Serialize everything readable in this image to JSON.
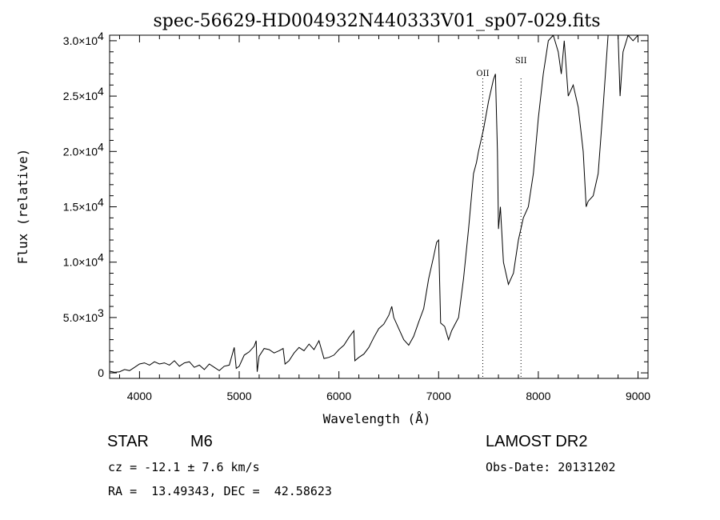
{
  "chart_data": {
    "type": "line",
    "title": "spec-56629-HD004932N440333V01_sp07-029.fits",
    "xlabel": "Wavelength (Å)",
    "ylabel": "Flux (relative)",
    "xlim": [
      3700,
      9100
    ],
    "ylim": [
      -500,
      30500
    ],
    "x_ticks": [
      {
        "value": 4000,
        "label": "4000"
      },
      {
        "value": 5000,
        "label": "5000"
      },
      {
        "value": 6000,
        "label": "6000"
      },
      {
        "value": 7000,
        "label": "7000"
      },
      {
        "value": 8000,
        "label": "8000"
      },
      {
        "value": 9000,
        "label": "9000"
      }
    ],
    "y_ticks": [
      {
        "value": 0,
        "label": "0"
      },
      {
        "value": 5000,
        "label": "5.0×10",
        "exp": "3"
      },
      {
        "value": 10000,
        "label": "1.0×10",
        "exp": "4"
      },
      {
        "value": 15000,
        "label": "1.5×10",
        "exp": "4"
      },
      {
        "value": 20000,
        "label": "2.0×10",
        "exp": "4"
      },
      {
        "value": 25000,
        "label": "2.5×10",
        "exp": "4"
      },
      {
        "value": 30000,
        "label": "3.0×10",
        "exp": "4"
      }
    ],
    "grid": false,
    "annotations": [
      {
        "label": "OII",
        "x": 7443
      },
      {
        "label": "SII",
        "x": 7826
      }
    ],
    "series": [
      {
        "values": [
          [
            3700,
            150
          ],
          [
            3750,
            50
          ],
          [
            3800,
            100
          ],
          [
            3850,
            300
          ],
          [
            3900,
            200
          ],
          [
            3950,
            500
          ],
          [
            4000,
            800
          ],
          [
            4050,
            900
          ],
          [
            4100,
            700
          ],
          [
            4150,
            1000
          ],
          [
            4200,
            800
          ],
          [
            4250,
            900
          ],
          [
            4300,
            700
          ],
          [
            4350,
            1100
          ],
          [
            4400,
            600
          ],
          [
            4450,
            900
          ],
          [
            4500,
            1000
          ],
          [
            4550,
            500
          ],
          [
            4600,
            700
          ],
          [
            4650,
            300
          ],
          [
            4700,
            800
          ],
          [
            4750,
            500
          ],
          [
            4800,
            200
          ],
          [
            4850,
            600
          ],
          [
            4900,
            700
          ],
          [
            4950,
            2300
          ],
          [
            4970,
            400
          ],
          [
            5000,
            600
          ],
          [
            5050,
            1600
          ],
          [
            5100,
            1900
          ],
          [
            5150,
            2400
          ],
          [
            5170,
            2900
          ],
          [
            5180,
            100
          ],
          [
            5200,
            1500
          ],
          [
            5250,
            2200
          ],
          [
            5300,
            2100
          ],
          [
            5350,
            1800
          ],
          [
            5400,
            2000
          ],
          [
            5440,
            2200
          ],
          [
            5460,
            800
          ],
          [
            5500,
            1100
          ],
          [
            5550,
            1800
          ],
          [
            5600,
            2300
          ],
          [
            5650,
            2000
          ],
          [
            5700,
            2600
          ],
          [
            5750,
            2100
          ],
          [
            5800,
            2900
          ],
          [
            5850,
            1300
          ],
          [
            5900,
            1400
          ],
          [
            5950,
            1600
          ],
          [
            6000,
            2100
          ],
          [
            6050,
            2500
          ],
          [
            6100,
            3200
          ],
          [
            6150,
            3800
          ],
          [
            6160,
            1100
          ],
          [
            6200,
            1400
          ],
          [
            6250,
            1700
          ],
          [
            6300,
            2300
          ],
          [
            6350,
            3200
          ],
          [
            6400,
            4000
          ],
          [
            6450,
            4400
          ],
          [
            6500,
            5200
          ],
          [
            6530,
            6000
          ],
          [
            6550,
            5000
          ],
          [
            6600,
            4000
          ],
          [
            6650,
            3000
          ],
          [
            6700,
            2500
          ],
          [
            6750,
            3300
          ],
          [
            6800,
            4600
          ],
          [
            6850,
            5800
          ],
          [
            6900,
            8500
          ],
          [
            6950,
            10500
          ],
          [
            6980,
            11800
          ],
          [
            7000,
            12000
          ],
          [
            7020,
            4500
          ],
          [
            7060,
            4200
          ],
          [
            7100,
            3000
          ],
          [
            7130,
            3800
          ],
          [
            7200,
            5000
          ],
          [
            7250,
            8500
          ],
          [
            7300,
            13000
          ],
          [
            7350,
            18000
          ],
          [
            7380,
            19000
          ],
          [
            7400,
            20000
          ],
          [
            7450,
            22000
          ],
          [
            7500,
            24500
          ],
          [
            7550,
            26500
          ],
          [
            7570,
            27000
          ],
          [
            7590,
            20000
          ],
          [
            7600,
            13000
          ],
          [
            7620,
            15000
          ],
          [
            7650,
            10000
          ],
          [
            7700,
            8000
          ],
          [
            7750,
            9000
          ],
          [
            7800,
            12000
          ],
          [
            7850,
            14000
          ],
          [
            7900,
            15000
          ],
          [
            7950,
            18000
          ],
          [
            8000,
            23000
          ],
          [
            8050,
            27000
          ],
          [
            8100,
            30000
          ],
          [
            8150,
            30500
          ],
          [
            8200,
            29000
          ],
          [
            8230,
            27000
          ],
          [
            8260,
            30000
          ],
          [
            8300,
            25000
          ],
          [
            8350,
            26000
          ],
          [
            8400,
            24000
          ],
          [
            8450,
            20000
          ],
          [
            8480,
            15000
          ],
          [
            8500,
            15500
          ],
          [
            8550,
            16000
          ],
          [
            8600,
            18000
          ],
          [
            8650,
            24000
          ],
          [
            8700,
            30500
          ],
          [
            8750,
            30500
          ],
          [
            8800,
            30500
          ],
          [
            8820,
            25000
          ],
          [
            8850,
            29000
          ],
          [
            8900,
            30500
          ],
          [
            8950,
            30000
          ],
          [
            9000,
            30500
          ]
        ]
      }
    ]
  },
  "info": {
    "object_type": "STAR",
    "subclass": "M6",
    "survey": "LAMOST DR2",
    "cz": "cz = -12.1 ± 7.6 km/s",
    "obs_date": "Obs-Date: 20131202",
    "radec": "RA =  13.49343, DEC =  42.58623"
  }
}
